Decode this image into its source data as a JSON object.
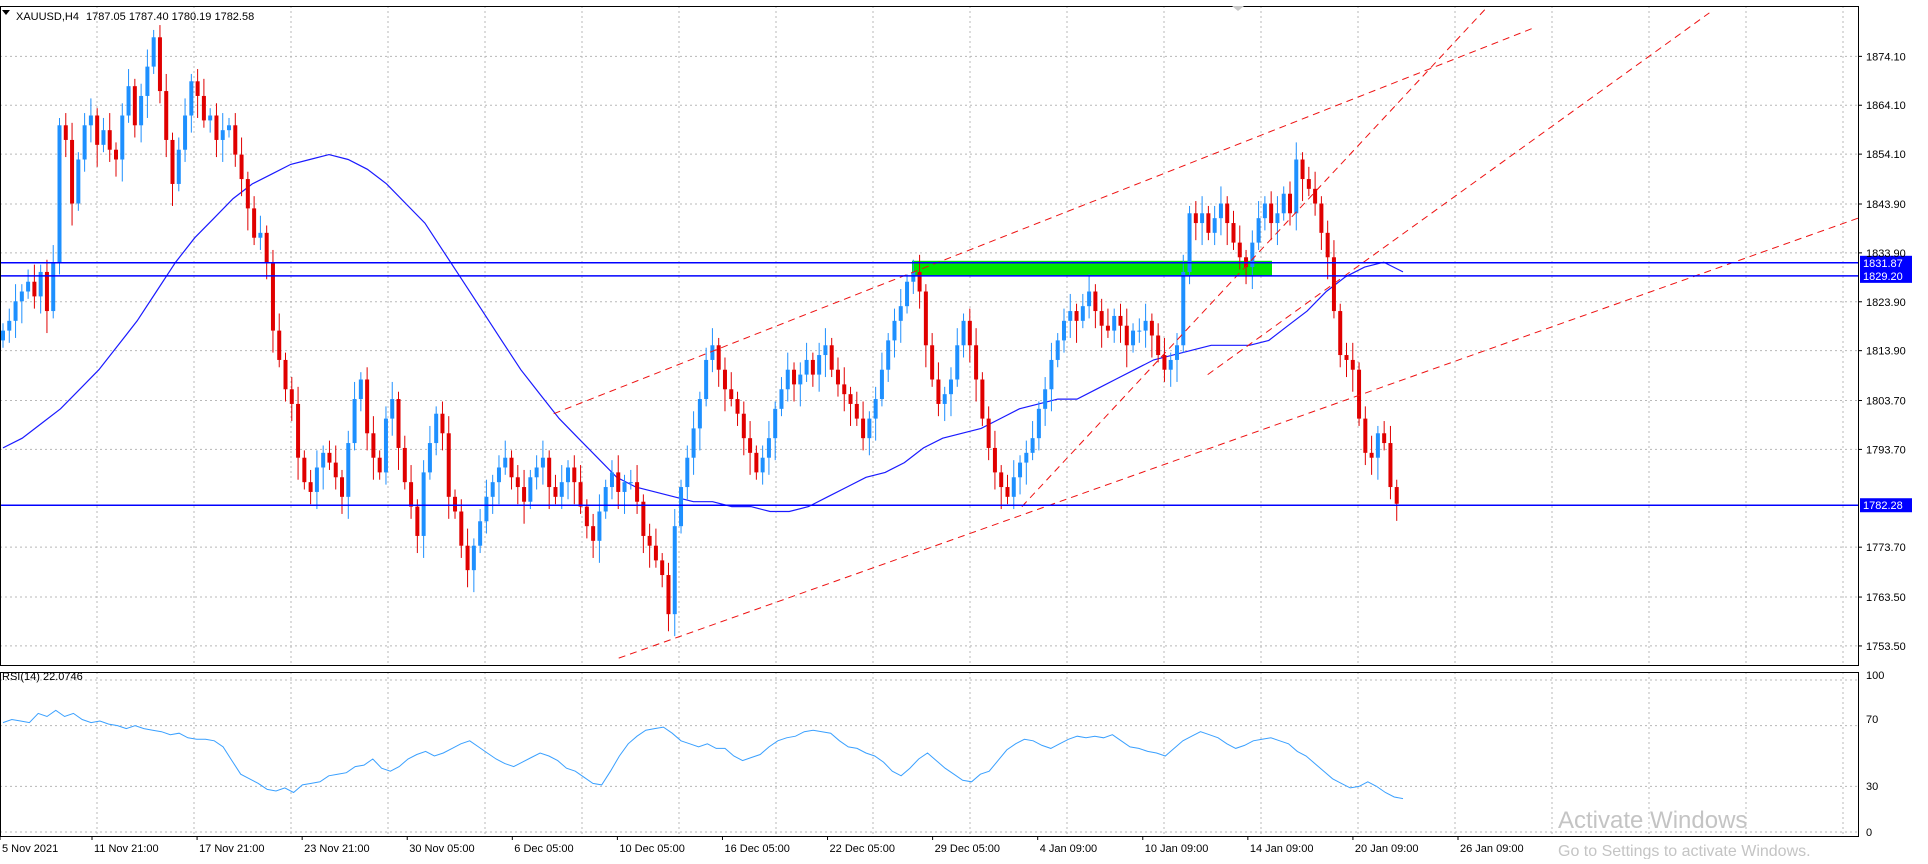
{
  "header": {
    "symbol": "XAUUSD,H4",
    "ohlc": "1787.05 1787.40 1780.19 1782.58"
  },
  "rsi": {
    "label": "RSI(14) 22.0746",
    "ticks": [
      "100",
      "70",
      "30",
      "0"
    ],
    "levels": [
      100,
      70,
      30,
      0
    ]
  },
  "watermark": {
    "line1": "Activate Windows",
    "line2": "Go to Settings to activate Windows."
  },
  "chart_data": {
    "type": "candlestick",
    "title": "",
    "y_ticks": [
      "1874.10",
      "1864.10",
      "1854.10",
      "1843.90",
      "1833.90",
      "1823.90",
      "1813.90",
      "1803.70",
      "1793.70",
      "1773.70",
      "1763.50",
      "1753.50"
    ],
    "ylim": [
      1749.6,
      1884.4
    ],
    "x_labels": [
      "5 Nov 2021",
      "11 Nov 21:00",
      "17 Nov 21:00",
      "23 Nov 21:00",
      "30 Nov 05:00",
      "6 Dec 05:00",
      "10 Dec 05:00",
      "16 Dec 05:00",
      "22 Dec 05:00",
      "29 Dec 05:00",
      "4 Jan 09:00",
      "10 Jan 09:00",
      "14 Jan 09:00",
      "20 Jan 09:00",
      "26 Jan 09:00"
    ],
    "price_labels": [
      {
        "text": "1831.87",
        "value": 1831.87
      },
      {
        "text": "1829.20",
        "value": 1829.2
      },
      {
        "text": "1782.28",
        "value": 1782.28
      }
    ],
    "horizontal_lines": [
      1831.87,
      1829.2,
      1782.28
    ],
    "series": [
      {
        "name": "XAUUSD",
        "kind": "close",
        "values": [
          1818,
          1820,
          1824,
          1826,
          1828,
          1825,
          1830,
          1822,
          1832,
          1860,
          1857,
          1844,
          1853,
          1860,
          1862,
          1856,
          1859,
          1855,
          1853,
          1862,
          1868,
          1860,
          1866,
          1872,
          1878,
          1867,
          1857,
          1848,
          1855,
          1862,
          1869,
          1866,
          1861,
          1862,
          1857,
          1859,
          1860,
          1854,
          1849,
          1843,
          1837,
          1838,
          1832,
          1818,
          1812,
          1806,
          1803,
          1792,
          1787,
          1785,
          1790,
          1793,
          1791,
          1788,
          1784,
          1795,
          1804,
          1808,
          1797,
          1792,
          1789,
          1800,
          1804,
          1794,
          1787,
          1782,
          1776,
          1789,
          1795,
          1801,
          1797,
          1784,
          1781,
          1774,
          1769,
          1774,
          1779,
          1784,
          1787,
          1790,
          1792,
          1788,
          1786,
          1783,
          1788,
          1790,
          1792,
          1786,
          1784,
          1787,
          1790,
          1787,
          1782,
          1778,
          1775,
          1781,
          1786,
          1789,
          1785,
          1787,
          1787,
          1783,
          1776,
          1774,
          1771,
          1768,
          1760,
          1778,
          1786,
          1792,
          1798,
          1804,
          1812,
          1815,
          1810,
          1806,
          1804,
          1801,
          1796,
          1793,
          1789,
          1792,
          1796,
          1802,
          1806,
          1810,
          1807,
          1809,
          1812,
          1809,
          1813,
          1815,
          1810,
          1807,
          1805,
          1803,
          1800,
          1796,
          1800,
          1804,
          1810,
          1816,
          1820,
          1823,
          1828,
          1830,
          1826,
          1815,
          1808,
          1803,
          1805,
          1808,
          1815,
          1820,
          1815,
          1808,
          1800,
          1794,
          1789,
          1786,
          1784,
          1788,
          1791,
          1793,
          1796,
          1802,
          1806,
          1812,
          1816,
          1820,
          1822,
          1820,
          1823,
          1826,
          1822,
          1819,
          1818,
          1821,
          1819,
          1815,
          1818,
          1818,
          1820,
          1817,
          1813,
          1810,
          1812,
          1815,
          1830,
          1842,
          1840,
          1842,
          1838,
          1841,
          1844,
          1840,
          1836,
          1833,
          1831,
          1836,
          1841,
          1844,
          1840,
          1842,
          1846,
          1842,
          1853,
          1849,
          1847,
          1844,
          1838,
          1833,
          1822,
          1813,
          1812,
          1810,
          1800,
          1793,
          1792,
          1797,
          1795,
          1786,
          1782.58
        ]
      },
      {
        "name": "MA",
        "kind": "moving-average",
        "values": [
          1794,
          1796,
          1799,
          1802,
          1806,
          1810,
          1815,
          1820,
          1826,
          1832,
          1837,
          1841,
          1845,
          1848,
          1850,
          1852,
          1853,
          1854,
          1853,
          1851,
          1848,
          1844,
          1840,
          1834,
          1828,
          1822,
          1816,
          1810,
          1805,
          1800,
          1796,
          1792,
          1788,
          1786,
          1785,
          1784,
          1783,
          1783,
          1782,
          1782,
          1781,
          1781,
          1782,
          1784,
          1786,
          1788,
          1789,
          1791,
          1794,
          1796,
          1797,
          1798,
          1800,
          1802,
          1803,
          1804,
          1804,
          1806,
          1808,
          1810,
          1812,
          1813,
          1814,
          1815,
          1815,
          1815,
          1816,
          1819,
          1822,
          1826,
          1829,
          1831,
          1832,
          1830
        ]
      },
      {
        "name": "RSI(14)",
        "kind": "oscillator",
        "values": [
          72,
          74,
          73,
          72,
          78,
          76,
          80,
          76,
          78,
          74,
          72,
          73,
          71,
          70,
          68,
          70,
          68,
          67,
          66,
          64,
          65,
          62,
          61,
          61,
          60,
          56,
          47,
          38,
          35,
          32,
          28,
          27,
          29,
          26,
          31,
          32,
          33,
          37,
          38,
          39,
          43,
          44,
          48,
          42,
          40,
          43,
          48,
          51,
          53,
          50,
          52,
          55,
          58,
          60,
          56,
          52,
          48,
          45,
          43,
          46,
          49,
          52,
          50,
          47,
          42,
          40,
          36,
          32,
          31,
          40,
          50,
          58,
          63,
          67,
          68,
          69,
          65,
          60,
          58,
          56,
          58,
          55,
          55,
          50,
          47,
          49,
          51,
          56,
          60,
          62,
          63,
          66,
          67,
          66,
          65,
          60,
          56,
          55,
          52,
          50,
          46,
          40,
          37,
          42,
          48,
          52,
          47,
          42,
          38,
          34,
          33,
          38,
          40,
          47,
          54,
          58,
          61,
          60,
          57,
          55,
          58,
          61,
          63,
          62,
          63,
          62,
          64,
          60,
          56,
          55,
          53,
          52,
          50,
          55,
          60,
          63,
          66,
          64,
          62,
          58,
          55,
          57,
          60,
          61,
          62,
          60,
          58,
          53,
          50,
          45,
          40,
          35,
          32,
          29,
          30,
          33,
          30,
          26,
          23,
          22
        ]
      }
    ],
    "zone": {
      "from": 1829.2,
      "to": 1831.87,
      "color": "#00e600"
    },
    "trendlines": [
      {
        "from": [
          0.298,
          1801
        ],
        "to": [
          0.826,
          1880
        ]
      },
      {
        "from": [
          0.333,
          1751
        ],
        "to": [
          1.0,
          1841
        ]
      },
      {
        "from": [
          0.55,
          1782
        ],
        "to": [
          0.8,
          1884
        ]
      },
      {
        "from": [
          0.65,
          1809
        ],
        "to": [
          0.92,
          1883
        ]
      }
    ],
    "colors": {
      "up": "#1e90ff",
      "down": "#e00000",
      "ma": "#1a1aff",
      "hline": "#0000ff",
      "trend": "#ee1111",
      "rsi": "#3aa0ff",
      "grid": "#b8b8b8"
    },
    "grid": true,
    "legend": "none"
  }
}
